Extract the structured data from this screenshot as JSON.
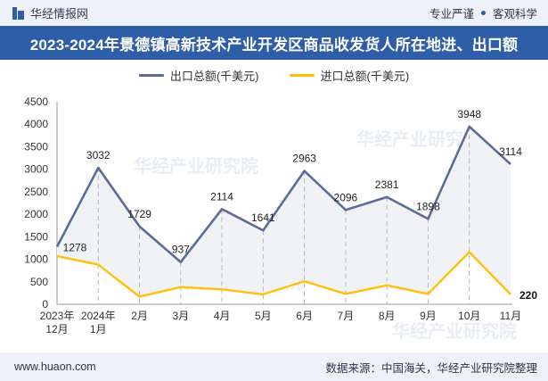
{
  "header": {
    "brand": "华经情报网",
    "tag1": "专业严谨",
    "tag2": "客观科学"
  },
  "title": "2023-2024年景德镇高新技术产业开发区商品收发货人所在地进、出口额",
  "footer": {
    "website": "www.huaon.com",
    "source": "数据来源：中国海关，华经产业研究院整理"
  },
  "watermark": "华经产业研究院",
  "colors": {
    "export": "#5b6b9a",
    "import": "#ffc107",
    "accent": "#2f5ea8"
  },
  "chart_data": {
    "type": "line",
    "categories": [
      [
        "2023年",
        "12月"
      ],
      [
        "2024年",
        "1月"
      ],
      [
        "2月"
      ],
      [
        "3月"
      ],
      [
        "4月"
      ],
      [
        "5月"
      ],
      [
        "6月"
      ],
      [
        "7月"
      ],
      [
        "8月"
      ],
      [
        "9月"
      ],
      [
        "10月"
      ],
      [
        "11月"
      ]
    ],
    "series": [
      {
        "name": "出口总额(千美元)",
        "values": [
          1278,
          3032,
          1729,
          937,
          2114,
          1641,
          2963,
          2096,
          2381,
          1898,
          3948,
          3114
        ],
        "labels": [
          "1278",
          "3032",
          "1729",
          "937",
          "2114",
          "1641",
          "2963",
          "2096",
          "2381",
          "1898",
          "3948",
          "3114"
        ]
      },
      {
        "name": "进口总额(千美元)",
        "values": [
          1070,
          880,
          170,
          380,
          330,
          220,
          510,
          230,
          420,
          230,
          1160,
          220
        ],
        "labels": [
          "",
          "",
          "",
          "",
          "",
          "",
          "",
          "",
          "",
          "",
          "",
          "220"
        ]
      }
    ],
    "ylim": [
      0,
      4500
    ],
    "yticks": [
      "0",
      "500",
      "1000",
      "1500",
      "2000",
      "2500",
      "3000",
      "3500",
      "4000",
      "4500"
    ],
    "legend_position": "top-center"
  }
}
